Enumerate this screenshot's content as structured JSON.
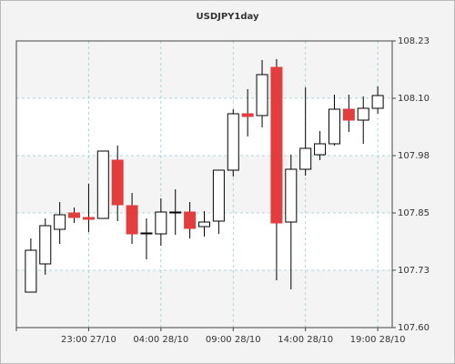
{
  "chart_data": {
    "type": "candlestick",
    "title": "USDJPY1day",
    "categories": [
      null,
      null,
      null,
      null,
      "23:00 27/10",
      null,
      null,
      null,
      null,
      "04:00 28/10",
      null,
      null,
      null,
      null,
      "09:00 28/10",
      null,
      null,
      null,
      null,
      "14:00 28/10",
      null,
      null,
      null,
      null,
      "19:00 28/10"
    ],
    "open": [
      107.678,
      107.74,
      107.816,
      107.852,
      107.842,
      107.84,
      107.968,
      107.868,
      107.806,
      107.806,
      107.852,
      107.854,
      107.822,
      107.834,
      107.946,
      108.07,
      108.066,
      108.172,
      107.832,
      107.948,
      107.98,
      108.004,
      108.08,
      108.056,
      108.082
    ],
    "high": [
      107.796,
      107.84,
      107.876,
      107.864,
      107.916,
      107.988,
      108.0,
      107.896,
      107.84,
      107.884,
      107.904,
      107.876,
      107.856,
      107.946,
      108.08,
      108.124,
      108.188,
      108.19,
      107.98,
      108.128,
      108.032,
      108.112,
      108.112,
      108.108,
      108.13
    ],
    "low": [
      107.678,
      107.716,
      107.784,
      107.83,
      107.81,
      107.84,
      107.834,
      107.784,
      107.75,
      107.78,
      107.804,
      107.796,
      107.8,
      107.806,
      107.932,
      108.02,
      108.04,
      107.704,
      107.684,
      107.934,
      107.968,
      108.0,
      108.03,
      108.004,
      108.07
    ],
    "close": [
      107.77,
      107.824,
      107.848,
      107.842,
      107.838,
      107.988,
      107.87,
      107.806,
      107.808,
      107.854,
      107.854,
      107.818,
      107.832,
      107.946,
      108.07,
      108.064,
      108.156,
      107.83,
      107.948,
      107.994,
      108.004,
      108.08,
      108.056,
      108.082,
      108.11
    ],
    "up_color": "#ffffff",
    "down_color": "#e43d3d",
    "edge_color": "#000000",
    "ylim": [
      107.6,
      108.23
    ],
    "yticks": [
      {
        "value": 107.6,
        "label": "107.60"
      },
      {
        "value": 107.726,
        "label": "107.73"
      },
      {
        "value": 107.852,
        "label": "107.85"
      },
      {
        "value": 107.978,
        "label": "107.98"
      },
      {
        "value": 108.104,
        "label": "108.10"
      },
      {
        "value": 108.23,
        "label": "108.23"
      }
    ],
    "grid": true
  }
}
